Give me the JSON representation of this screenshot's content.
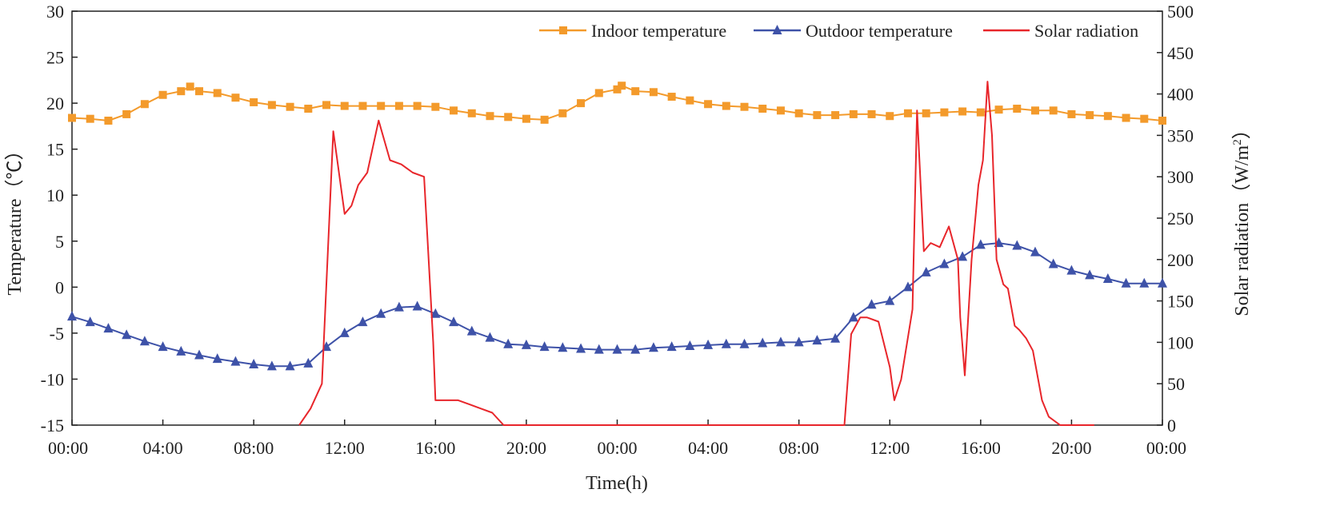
{
  "chart_data": {
    "type": "line",
    "title": "",
    "xlabel": "Time(h)",
    "ylabel": "Temperature（℃）",
    "y2label_prefix": "Solar radiation（W/m",
    "y2label_sup": "2",
    "y2label_suffix": "）",
    "xlim": [
      0,
      48
    ],
    "ylim": [
      -15,
      30
    ],
    "y2lim": [
      0,
      500
    ],
    "x_ticks": [
      {
        "x": 0,
        "label": "00:00"
      },
      {
        "x": 4,
        "label": "04:00"
      },
      {
        "x": 8,
        "label": "08:00"
      },
      {
        "x": 12,
        "label": "12:00"
      },
      {
        "x": 16,
        "label": "16:00"
      },
      {
        "x": 20,
        "label": "20:00"
      },
      {
        "x": 24,
        "label": "00:00"
      },
      {
        "x": 28,
        "label": "04:00"
      },
      {
        "x": 32,
        "label": "08:00"
      },
      {
        "x": 36,
        "label": "12:00"
      },
      {
        "x": 40,
        "label": "16:00"
      },
      {
        "x": 44,
        "label": "20:00"
      },
      {
        "x": 48,
        "label": "00:00"
      }
    ],
    "y_ticks": [
      30,
      25,
      20,
      15,
      10,
      5,
      0,
      -5,
      -10,
      -15
    ],
    "y2_ticks": [
      500,
      450,
      400,
      350,
      300,
      250,
      200,
      150,
      100,
      50,
      0
    ],
    "legend_position": "top-right",
    "series": [
      {
        "name": "Indoor temperature",
        "axis": "left",
        "color": "#F39A2B",
        "marker": "square",
        "x": [
          0,
          0.8,
          1.6,
          2.4,
          3.2,
          4.0,
          4.8,
          5.2,
          5.6,
          6.4,
          7.2,
          8.0,
          8.8,
          9.6,
          10.4,
          11.2,
          12.0,
          12.8,
          13.6,
          14.4,
          15.2,
          16.0,
          16.8,
          17.6,
          18.4,
          19.2,
          20.0,
          20.8,
          21.6,
          22.4,
          23.2,
          24.0,
          24.2,
          24.8,
          25.6,
          26.4,
          27.2,
          28.0,
          28.8,
          29.6,
          30.4,
          31.2,
          32.0,
          32.8,
          33.6,
          34.4,
          35.2,
          36.0,
          36.8,
          37.6,
          38.4,
          39.2,
          40.0,
          40.8,
          41.6,
          42.4,
          43.2,
          44.0,
          44.8,
          45.6,
          46.4,
          47.2,
          48.0
        ],
        "values": [
          18.4,
          18.3,
          18.1,
          18.8,
          19.9,
          20.9,
          21.3,
          21.8,
          21.3,
          21.1,
          20.6,
          20.1,
          19.8,
          19.6,
          19.4,
          19.8,
          19.7,
          19.7,
          19.7,
          19.7,
          19.7,
          19.6,
          19.2,
          18.9,
          18.6,
          18.5,
          18.3,
          18.2,
          18.9,
          20.0,
          21.1,
          21.5,
          21.9,
          21.3,
          21.2,
          20.7,
          20.3,
          19.9,
          19.7,
          19.6,
          19.4,
          19.2,
          18.9,
          18.7,
          18.7,
          18.8,
          18.8,
          18.6,
          18.9,
          18.9,
          19.0,
          19.1,
          19.0,
          19.3,
          19.4,
          19.2,
          19.2,
          18.8,
          18.7,
          18.6,
          18.4,
          18.3,
          18.1
        ]
      },
      {
        "name": "Outdoor temperature",
        "axis": "left",
        "color": "#3E52A8",
        "marker": "triangle",
        "x": [
          0,
          0.8,
          1.6,
          2.4,
          3.2,
          4.0,
          4.8,
          5.6,
          6.4,
          7.2,
          8.0,
          8.8,
          9.6,
          10.4,
          11.2,
          12.0,
          12.8,
          13.6,
          14.4,
          15.2,
          16.0,
          16.8,
          17.6,
          18.4,
          19.2,
          20.0,
          20.8,
          21.6,
          22.4,
          23.2,
          24.0,
          24.8,
          25.6,
          26.4,
          27.2,
          28.0,
          28.8,
          29.6,
          30.4,
          31.2,
          32.0,
          32.8,
          33.6,
          34.4,
          35.2,
          36.0,
          36.8,
          37.6,
          38.4,
          39.2,
          40.0,
          40.8,
          41.6,
          42.4,
          43.2,
          44.0,
          44.8,
          45.6,
          46.4,
          47.2,
          48.0
        ],
        "values": [
          -3.2,
          -3.8,
          -4.5,
          -5.2,
          -5.9,
          -6.5,
          -7.0,
          -7.4,
          -7.8,
          -8.1,
          -8.4,
          -8.6,
          -8.6,
          -8.3,
          -6.5,
          -5.0,
          -3.8,
          -2.9,
          -2.2,
          -2.1,
          -2.9,
          -3.8,
          -4.8,
          -5.5,
          -6.2,
          -6.3,
          -6.5,
          -6.6,
          -6.7,
          -6.8,
          -6.8,
          -6.8,
          -6.6,
          -6.5,
          -6.4,
          -6.3,
          -6.2,
          -6.2,
          -6.1,
          -6.0,
          -6.0,
          -5.8,
          -5.6,
          -3.3,
          -1.9,
          -1.5,
          0.0,
          1.6,
          2.5,
          3.3,
          4.6,
          4.8,
          4.5,
          3.8,
          2.5,
          1.8,
          1.3,
          0.9,
          0.4,
          0.4,
          0.4
        ]
      },
      {
        "name": "Solar radiation",
        "axis": "right",
        "color": "#E8262B",
        "marker": "none",
        "x": [
          10.0,
          10.5,
          11.0,
          11.5,
          12.0,
          12.3,
          12.6,
          13.0,
          13.5,
          14.0,
          14.5,
          15.0,
          15.5,
          15.9,
          16.0,
          16.5,
          17.0,
          17.5,
          18.0,
          18.5,
          19.0,
          34.0,
          34.3,
          34.7,
          35.0,
          35.5,
          36.0,
          36.2,
          36.5,
          37.0,
          37.2,
          37.5,
          37.8,
          38.2,
          38.6,
          39.0,
          39.1,
          39.3,
          39.6,
          39.9,
          40.1,
          40.3,
          40.5,
          40.7,
          41.0,
          41.2,
          41.5,
          41.7,
          42.0,
          42.3,
          42.7,
          43.0,
          43.5,
          43.7,
          44.0,
          44.2,
          44.5,
          45.0
        ],
        "values": [
          0,
          20,
          50,
          355,
          255,
          265,
          290,
          305,
          368,
          320,
          315,
          305,
          300,
          100,
          30,
          30,
          30,
          25,
          20,
          15,
          0,
          0,
          110,
          130,
          130,
          125,
          70,
          30,
          55,
          140,
          380,
          210,
          220,
          215,
          240,
          200,
          130,
          60,
          200,
          290,
          320,
          415,
          350,
          200,
          170,
          165,
          120,
          115,
          105,
          90,
          30,
          10,
          0,
          0,
          0,
          0,
          0,
          0
        ]
      }
    ]
  }
}
